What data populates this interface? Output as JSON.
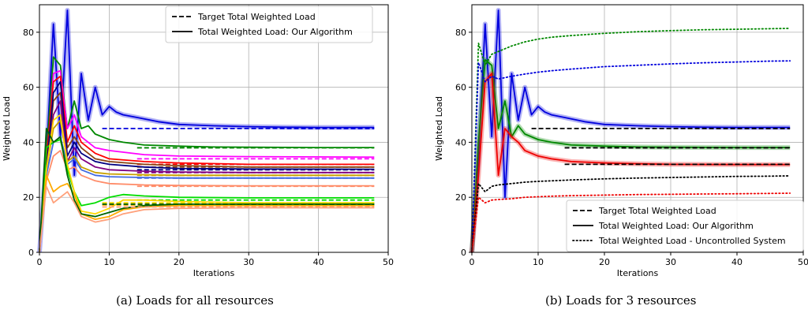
{
  "captions": {
    "a": "(a) Loads for all resources",
    "b": "(b) Loads for 3 resources"
  },
  "chart_data": [
    {
      "type": "line",
      "title": "",
      "xlabel": "Iterations",
      "ylabel": "Weighted Load",
      "xlim": [
        0,
        50
      ],
      "ylim": [
        0,
        90
      ],
      "xticks": [
        0,
        10,
        20,
        30,
        40,
        50
      ],
      "yticks": [
        0,
        20,
        40,
        60,
        80
      ],
      "grid": true,
      "legend_position": "top-right",
      "legend": [
        {
          "label": "Target Total Weighted Load",
          "style": "dashed",
          "color": "#000000"
        },
        {
          "label": "Total Weighted Load: Our Algorithm",
          "style": "solid",
          "color": "#000000"
        }
      ],
      "series": [
        {
          "color": "#0000dd",
          "band": true,
          "x": [
            0,
            1,
            2,
            3,
            4,
            5,
            6,
            7,
            8,
            9,
            10,
            11,
            12,
            14,
            17,
            20,
            25,
            30,
            35,
            40,
            45,
            48
          ],
          "y": [
            0,
            35,
            83,
            42,
            88,
            28,
            65,
            48,
            60,
            50,
            53,
            51,
            50,
            49,
            47.5,
            46.5,
            46,
            45.7,
            45.5,
            45.4,
            45.4,
            45.4
          ],
          "target": 45,
          "target_start": 9
        },
        {
          "color": "#008800",
          "band": false,
          "x": [
            0,
            1,
            2,
            3,
            4,
            5,
            6,
            7,
            8,
            10,
            12,
            15,
            20,
            25,
            30,
            40,
            48
          ],
          "y": [
            0,
            35,
            71,
            68,
            45,
            55,
            45,
            46,
            43,
            41,
            40,
            39,
            38.6,
            38.3,
            38.2,
            38.1,
            38.1
          ],
          "target": 38,
          "target_start": 14
        },
        {
          "color": "#ff00ff",
          "band": false,
          "x": [
            0,
            1,
            2,
            3,
            4,
            5,
            6,
            8,
            10,
            15,
            20,
            30,
            48
          ],
          "y": [
            0,
            30,
            65,
            66,
            45,
            50,
            42,
            38,
            37,
            35.5,
            35,
            34.8,
            34.6
          ],
          "target": 34,
          "target_start": 14
        },
        {
          "color": "#ff0000",
          "band": false,
          "x": [
            0,
            1,
            2,
            3,
            4,
            5,
            6,
            8,
            10,
            15,
            20,
            30,
            48
          ],
          "y": [
            0,
            34,
            62,
            64,
            40,
            46,
            40,
            36,
            34,
            33,
            32.5,
            32,
            32
          ],
          "target": 32,
          "target_start": 14
        },
        {
          "color": "#8b4513",
          "band": false,
          "x": [
            0,
            1,
            2,
            3,
            4,
            5,
            6,
            8,
            10,
            15,
            20,
            30,
            48
          ],
          "y": [
            0,
            30,
            55,
            58,
            38,
            42,
            38,
            34,
            33,
            32,
            31.5,
            31,
            31
          ],
          "target": 31,
          "target_start": 14
        },
        {
          "color": "#000080",
          "band": false,
          "x": [
            0,
            1,
            2,
            3,
            4,
            5,
            6,
            8,
            10,
            15,
            20,
            30,
            48
          ],
          "y": [
            0,
            30,
            58,
            62,
            35,
            40,
            36,
            33,
            32,
            31,
            30.5,
            30.3,
            30.2
          ],
          "target": 30,
          "target_start": 14
        },
        {
          "color": "#800080",
          "band": false,
          "x": [
            0,
            1,
            2,
            3,
            4,
            5,
            6,
            8,
            10,
            15,
            20,
            30,
            48
          ],
          "y": [
            0,
            28,
            50,
            55,
            33,
            38,
            34,
            31,
            30,
            29.5,
            29.2,
            29,
            29
          ],
          "target": 29,
          "target_start": 14
        },
        {
          "color": "#c8a000",
          "band": false,
          "x": [
            0,
            1,
            2,
            3,
            4,
            5,
            6,
            8,
            10,
            15,
            20,
            30,
            48
          ],
          "y": [
            0,
            30,
            45,
            48,
            33,
            35,
            31,
            29,
            28.5,
            28.2,
            28,
            28,
            28
          ],
          "target": 28,
          "target_start": 14
        },
        {
          "color": "#4169e1",
          "band": false,
          "x": [
            0,
            1,
            2,
            3,
            4,
            5,
            6,
            8,
            10,
            15,
            20,
            30,
            48
          ],
          "y": [
            0,
            28,
            40,
            42,
            32,
            34,
            30,
            28,
            27.5,
            27.2,
            27,
            27,
            27
          ],
          "target": 27,
          "target_start": 14
        },
        {
          "color": "#ff8c69",
          "band": false,
          "x": [
            0,
            1,
            2,
            3,
            4,
            5,
            6,
            8,
            10,
            15,
            20,
            30,
            48
          ],
          "y": [
            0,
            26,
            35,
            37,
            30,
            31,
            28,
            26,
            25,
            24.5,
            24.3,
            24.2,
            24.2
          ],
          "target": 24,
          "target_start": 14
        },
        {
          "color": "#00dd00",
          "band": false,
          "x": [
            0,
            1,
            2,
            3,
            4,
            5,
            6,
            8,
            10,
            12,
            15,
            20,
            30,
            48
          ],
          "y": [
            0,
            38,
            40,
            41,
            30,
            22,
            17,
            18,
            20,
            21,
            20.5,
            20,
            19.8,
            19.8
          ],
          "target": 19,
          "target_start": 14
        },
        {
          "color": "#ffd700",
          "band": false,
          "x": [
            0,
            1,
            2,
            3,
            4,
            5,
            6,
            8,
            10,
            12,
            15,
            20,
            30,
            48
          ],
          "y": [
            0,
            30,
            48,
            50,
            32,
            22,
            15,
            14,
            16,
            19,
            19,
            18.5,
            18,
            18
          ],
          "target": 18,
          "target_start": 9
        },
        {
          "color": "#ffaa00",
          "band": false,
          "x": [
            0,
            1,
            2,
            3,
            4,
            5,
            6,
            8,
            10,
            12,
            15,
            20,
            30,
            48
          ],
          "y": [
            0,
            28,
            22,
            24,
            25,
            21,
            14,
            12,
            13,
            15.5,
            16.5,
            17,
            17,
            17
          ],
          "target": 17.2,
          "target_start": 9
        },
        {
          "color": "#006400",
          "band": false,
          "x": [
            0,
            1,
            2,
            3,
            4,
            5,
            6,
            8,
            10,
            12,
            15,
            20,
            30,
            48
          ],
          "y": [
            0,
            45,
            40,
            42,
            28,
            19,
            14,
            13,
            14.5,
            16,
            17,
            17.5,
            17.5,
            17.5
          ],
          "target": 17.5,
          "target_start": 9
        },
        {
          "color": "#ffa07a",
          "band": false,
          "x": [
            0,
            1,
            2,
            3,
            4,
            5,
            6,
            8,
            10,
            12,
            15,
            20,
            30,
            48
          ],
          "y": [
            0,
            24,
            18,
            20,
            22,
            18,
            13,
            11,
            12,
            14,
            15.5,
            16,
            16.2,
            16.2
          ],
          "target": 16.5,
          "target_start": 9
        }
      ]
    },
    {
      "type": "line",
      "title": "",
      "xlabel": "Iterations",
      "ylabel": "Weighted Load",
      "xlim": [
        0,
        50
      ],
      "ylim": [
        0,
        90
      ],
      "xticks": [
        0,
        10,
        20,
        30,
        40,
        50
      ],
      "yticks": [
        0,
        20,
        40,
        60,
        80
      ],
      "grid": true,
      "legend_position": "bottom-right",
      "legend": [
        {
          "label": "Target Total Weighted Load",
          "style": "dashed",
          "color": "#000000"
        },
        {
          "label": "Total Weighted Load: Our Algorithm",
          "style": "solid",
          "color": "#000000"
        },
        {
          "label": "Total Weighted Load - Uncontrolled System",
          "style": "dotted",
          "color": "#000000"
        }
      ],
      "series": [
        {
          "color": "#0000dd",
          "style": "solid",
          "band": true,
          "x": [
            0,
            1,
            2,
            3,
            4,
            5,
            6,
            7,
            8,
            9,
            10,
            11,
            12,
            14,
            17,
            20,
            25,
            30,
            35,
            40,
            45,
            48
          ],
          "y": [
            0,
            35,
            83,
            42,
            88,
            20,
            65,
            48,
            60,
            50,
            53,
            51,
            50,
            49,
            47.5,
            46.5,
            46,
            45.7,
            45.5,
            45.4,
            45.4,
            45.4
          ]
        },
        {
          "color": "#008800",
          "style": "solid",
          "band": true,
          "x": [
            0,
            1,
            2,
            3,
            4,
            5,
            6,
            7,
            8,
            10,
            12,
            15,
            20,
            25,
            30,
            40,
            48
          ],
          "y": [
            0,
            40,
            70,
            68,
            45,
            55,
            42,
            46,
            43,
            41,
            40,
            39,
            38.6,
            38.3,
            38.2,
            38.1,
            38.1
          ]
        },
        {
          "color": "#ee0000",
          "style": "solid",
          "band": true,
          "x": [
            0,
            1,
            2,
            3,
            4,
            5,
            6,
            7,
            8,
            10,
            12,
            15,
            20,
            25,
            30,
            40,
            48
          ],
          "y": [
            0,
            28,
            62,
            65,
            28,
            45,
            42,
            40,
            37,
            35,
            34,
            33,
            32.5,
            32.2,
            32,
            31.9,
            31.9
          ]
        },
        {
          "color": "#008800",
          "style": "dotted",
          "band": false,
          "x": [
            0,
            1,
            2,
            3,
            4,
            6,
            8,
            10,
            12,
            15,
            20,
            25,
            30,
            35,
            40,
            45,
            48
          ],
          "y": [
            0,
            76,
            68,
            72,
            73,
            75,
            76.5,
            77.5,
            78.2,
            78.8,
            79.6,
            80.2,
            80.6,
            80.9,
            81.1,
            81.3,
            81.4
          ]
        },
        {
          "color": "#0000dd",
          "style": "dotted",
          "band": false,
          "x": [
            0,
            1,
            2,
            3,
            4,
            6,
            8,
            10,
            12,
            15,
            20,
            25,
            30,
            35,
            40,
            45,
            48
          ],
          "y": [
            0,
            69,
            62,
            64,
            63,
            64,
            64.8,
            65.5,
            66,
            66.6,
            67.5,
            68,
            68.5,
            68.9,
            69.2,
            69.5,
            69.6
          ]
        },
        {
          "color": "#000000",
          "style": "dotted",
          "band": false,
          "x": [
            0,
            1,
            2,
            3,
            4,
            6,
            8,
            10,
            12,
            15,
            20,
            25,
            30,
            35,
            40,
            45,
            48
          ],
          "y": [
            0,
            25,
            22,
            24,
            24.5,
            25,
            25.5,
            25.8,
            26,
            26.3,
            26.7,
            27,
            27.2,
            27.4,
            27.6,
            27.7,
            27.8
          ]
        },
        {
          "color": "#ee0000",
          "style": "dotted",
          "band": false,
          "x": [
            0,
            1,
            2,
            3,
            4,
            6,
            8,
            10,
            12,
            15,
            20,
            25,
            30,
            35,
            40,
            45,
            48
          ],
          "y": [
            0,
            20,
            18,
            19,
            19.2,
            19.5,
            20,
            20.2,
            20.4,
            20.6,
            20.8,
            21,
            21.1,
            21.2,
            21.3,
            21.4,
            21.5
          ]
        }
      ],
      "targets": [
        {
          "y": 45,
          "x_start": 9,
          "x_end": 48
        },
        {
          "y": 38,
          "x_start": 14,
          "x_end": 48
        },
        {
          "y": 32,
          "x_start": 14,
          "x_end": 48
        }
      ]
    }
  ]
}
